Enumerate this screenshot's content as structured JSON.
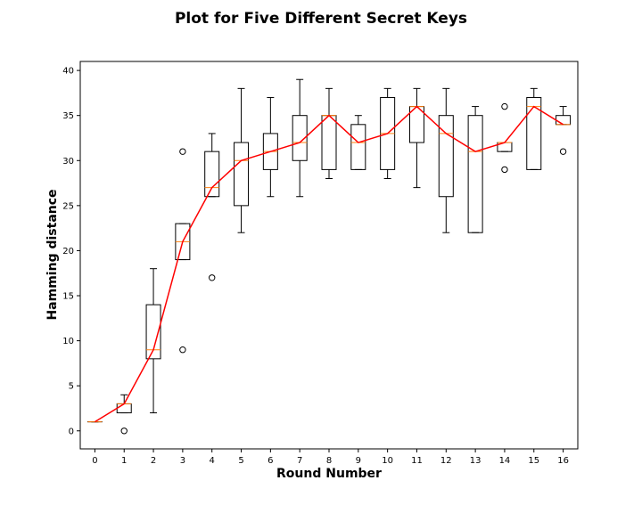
{
  "chart_data": {
    "type": "box",
    "title": "Plot for Five Different Secret Keys",
    "xlabel": "Round Number",
    "ylabel": "Hamming distance",
    "xlim": [
      -0.5,
      16.5
    ],
    "ylim": [
      -2,
      41
    ],
    "yticks": [
      0,
      5,
      10,
      15,
      20,
      25,
      30,
      35,
      40
    ],
    "categories": [
      "0",
      "1",
      "2",
      "3",
      "4",
      "5",
      "6",
      "7",
      "8",
      "9",
      "10",
      "11",
      "12",
      "13",
      "14",
      "15",
      "16"
    ],
    "grid": false,
    "colors": {
      "box": "#000000",
      "median": "#ff7f0e",
      "mean_line": "#ff0000"
    },
    "boxes": [
      {
        "round": 0,
        "q1": 1,
        "median": 1,
        "q3": 1,
        "whisker_low": 1,
        "whisker_high": 1,
        "outliers": []
      },
      {
        "round": 1,
        "q1": 2,
        "median": 3,
        "q3": 3,
        "whisker_low": 2,
        "whisker_high": 4,
        "outliers": [
          0
        ]
      },
      {
        "round": 2,
        "q1": 8,
        "median": 9,
        "q3": 14,
        "whisker_low": 2,
        "whisker_high": 18,
        "outliers": []
      },
      {
        "round": 3,
        "q1": 19,
        "median": 21,
        "q3": 23,
        "whisker_low": 19,
        "whisker_high": 23,
        "outliers": [
          31,
          9
        ]
      },
      {
        "round": 4,
        "q1": 26,
        "median": 27,
        "q3": 31,
        "whisker_low": 26,
        "whisker_high": 33,
        "outliers": [
          17
        ]
      },
      {
        "round": 5,
        "q1": 25,
        "median": 30,
        "q3": 32,
        "whisker_low": 22,
        "whisker_high": 38,
        "outliers": []
      },
      {
        "round": 6,
        "q1": 29,
        "median": 31,
        "q3": 33,
        "whisker_low": 26,
        "whisker_high": 37,
        "outliers": []
      },
      {
        "round": 7,
        "q1": 30,
        "median": 32,
        "q3": 35,
        "whisker_low": 26,
        "whisker_high": 39,
        "outliers": []
      },
      {
        "round": 8,
        "q1": 29,
        "median": 35,
        "q3": 35,
        "whisker_low": 28,
        "whisker_high": 38,
        "outliers": []
      },
      {
        "round": 9,
        "q1": 29,
        "median": 32,
        "q3": 34,
        "whisker_low": 29,
        "whisker_high": 35,
        "outliers": []
      },
      {
        "round": 10,
        "q1": 29,
        "median": 33,
        "q3": 37,
        "whisker_low": 28,
        "whisker_high": 38,
        "outliers": []
      },
      {
        "round": 11,
        "q1": 32,
        "median": 36,
        "q3": 36,
        "whisker_low": 27,
        "whisker_high": 38,
        "outliers": []
      },
      {
        "round": 12,
        "q1": 26,
        "median": 33,
        "q3": 35,
        "whisker_low": 22,
        "whisker_high": 38,
        "outliers": []
      },
      {
        "round": 13,
        "q1": 22,
        "median": 31,
        "q3": 35,
        "whisker_low": 22,
        "whisker_high": 36,
        "outliers": []
      },
      {
        "round": 14,
        "q1": 31,
        "median": 32,
        "q3": 32,
        "whisker_low": 31,
        "whisker_high": 32,
        "outliers": [
          36,
          29
        ]
      },
      {
        "round": 15,
        "q1": 29,
        "median": 36,
        "q3": 37,
        "whisker_low": 29,
        "whisker_high": 38,
        "outliers": []
      },
      {
        "round": 16,
        "q1": 34,
        "median": 34,
        "q3": 35,
        "whisker_low": 34,
        "whisker_high": 36,
        "outliers": [
          31
        ]
      }
    ],
    "line": {
      "x": [
        0,
        1,
        2,
        3,
        4,
        5,
        6,
        7,
        8,
        9,
        10,
        11,
        12,
        13,
        14,
        15,
        16
      ],
      "y": [
        1,
        3,
        9,
        21,
        27,
        30,
        31,
        32,
        35,
        32,
        33,
        36,
        33,
        31,
        32,
        36,
        34
      ]
    }
  }
}
